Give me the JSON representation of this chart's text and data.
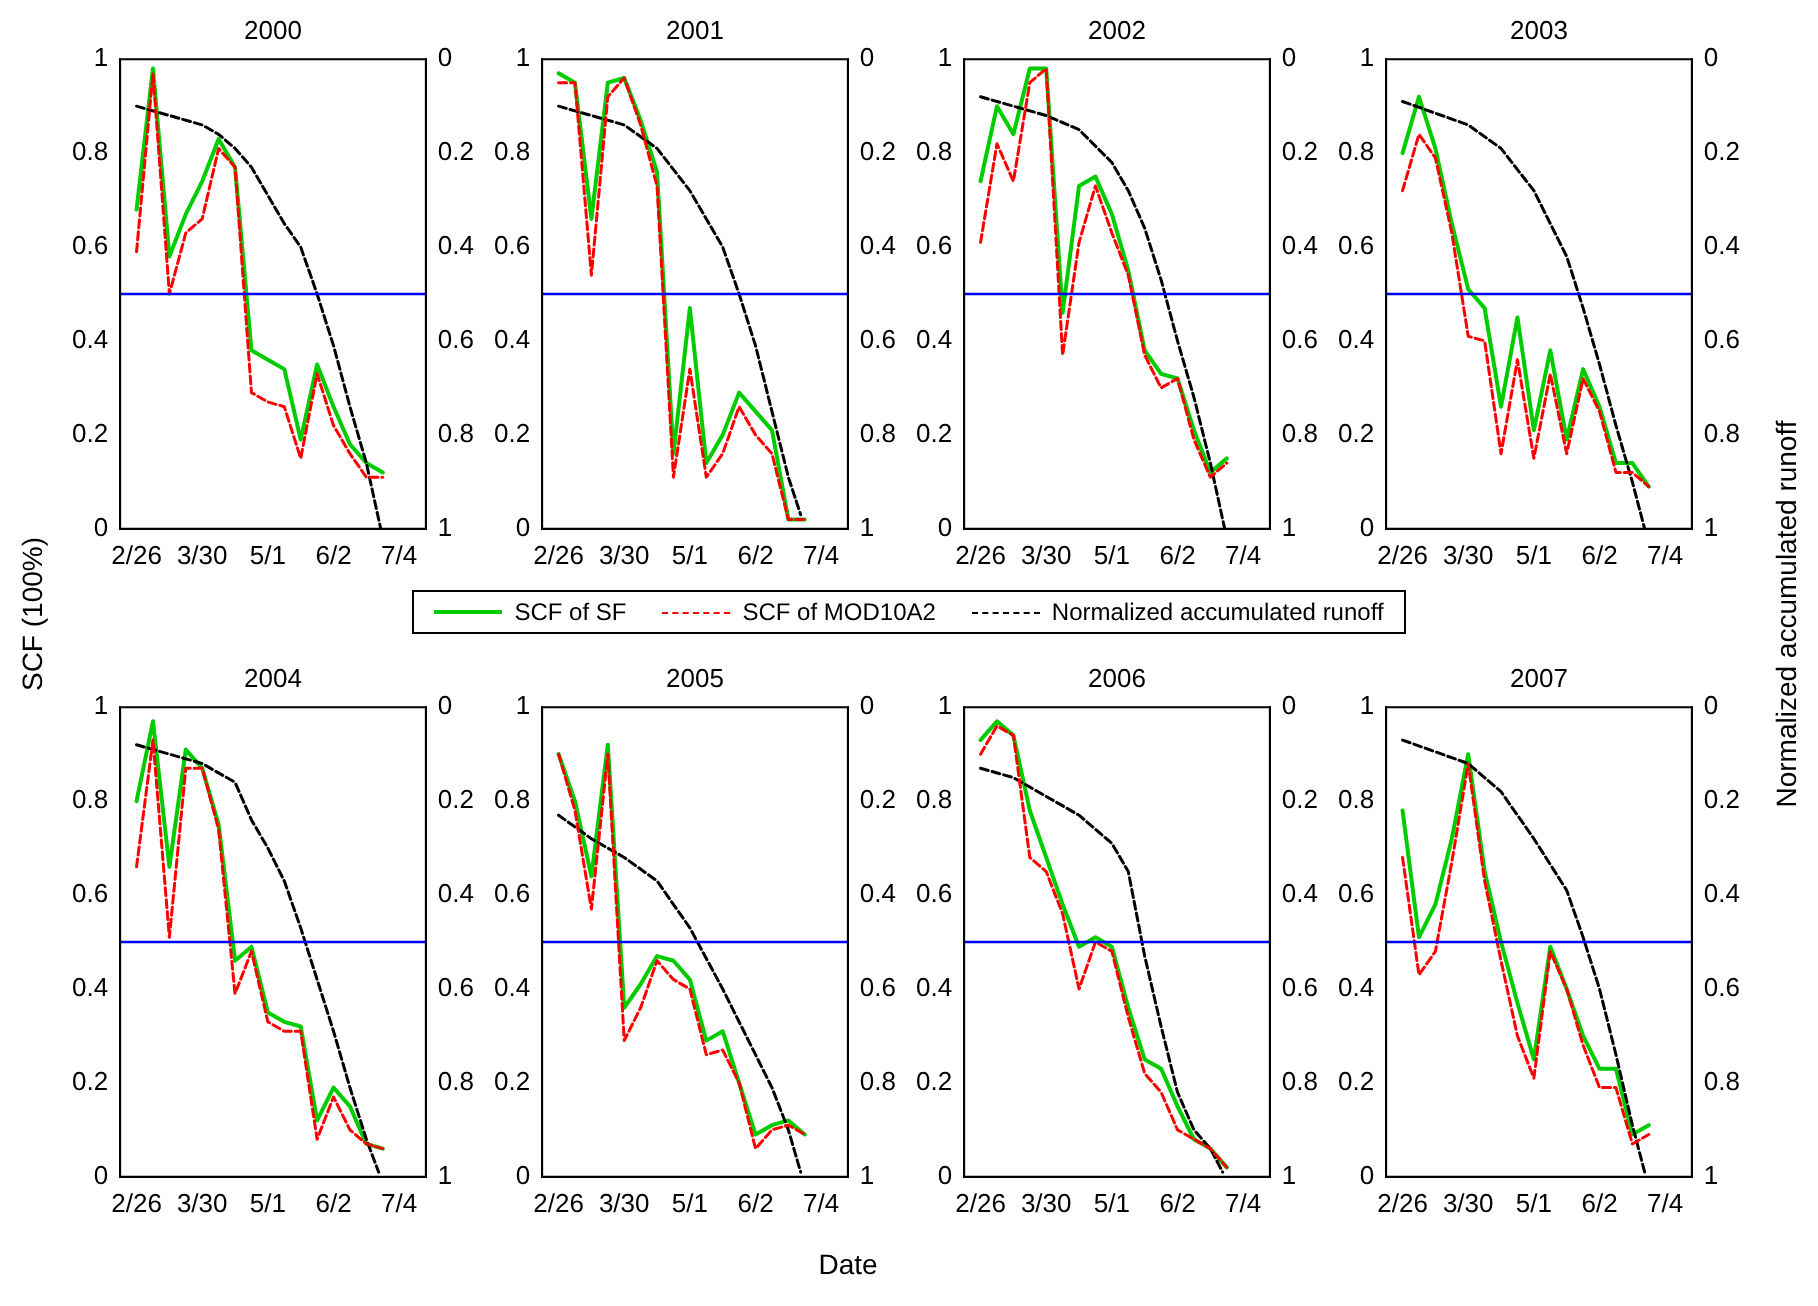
{
  "chart_data": [
    {
      "type": "line",
      "title": "2000",
      "ylabel": "SCF (100%)",
      "y2label": "Normalized accumulated runoff",
      "legend": "bottom",
      "marker": "none",
      "xlim": [
        "--02-18",
        "--07-17"
      ],
      "xticks": [
        {
          "value": "--02-26",
          "label": "2/26"
        },
        {
          "value": "--03-30",
          "label": "3/30"
        },
        {
          "value": "--05-01",
          "label": "5/1"
        },
        {
          "value": "--06-02",
          "label": "6/2"
        },
        {
          "value": "--07-04",
          "label": "7/4"
        }
      ],
      "ylim": [
        0,
        1
      ],
      "yticks": [
        0,
        0.2,
        0.4,
        0.6,
        0.8,
        1
      ],
      "y2lim": [
        1,
        0
      ],
      "y2ticks": [
        0,
        0.2,
        0.4,
        0.6,
        0.8,
        1
      ],
      "ref_lines": [
        {
          "axis": "y",
          "value": 0.5,
          "color": "#0000ff"
        }
      ],
      "x": [
        "--02-26",
        "--03-06",
        "--03-14",
        "--03-22",
        "--03-30",
        "--04-07",
        "--04-15",
        "--04-23",
        "--05-01",
        "--05-09",
        "--05-17",
        "--05-25",
        "--06-02",
        "--06-10",
        "--06-18",
        "--06-26"
      ],
      "series": [
        {
          "name": "SCF of SF",
          "color": "#00cc00",
          "line_style": "solid",
          "values": [
            0.68,
            0.98,
            0.58,
            0.67,
            0.74,
            0.83,
            0.77,
            0.38,
            0.36,
            0.34,
            0.19,
            0.35,
            0.26,
            0.18,
            0.14,
            0.12
          ]
        },
        {
          "name": "SCF of MOD10A2",
          "color": "#ff0000",
          "line_style": "dashed",
          "values": [
            0.59,
            0.97,
            0.5,
            0.63,
            0.66,
            0.81,
            0.77,
            0.29,
            0.27,
            0.26,
            0.15,
            0.33,
            0.22,
            0.16,
            0.11,
            0.11
          ]
        },
        {
          "name": "Normalized accumulated runoff",
          "color": "#000000",
          "line_style": "dashed",
          "axis": "y2",
          "x": [
            "--02-26",
            "--03-30",
            "--04-07",
            "--04-15",
            "--04-23",
            "--05-01",
            "--05-09",
            "--05-17",
            "--05-25",
            "--06-02",
            "--06-10",
            "--06-18",
            "--06-25"
          ],
          "values": [
            0.1,
            0.14,
            0.16,
            0.19,
            0.23,
            0.29,
            0.35,
            0.4,
            0.5,
            0.61,
            0.74,
            0.86,
            1
          ]
        }
      ]
    },
    {
      "type": "line",
      "title": "2001",
      "marker": "none",
      "xlim": [
        "--02-18",
        "--07-17"
      ],
      "xticks": [
        {
          "value": "--02-26",
          "label": "2/26"
        },
        {
          "value": "--03-30",
          "label": "3/30"
        },
        {
          "value": "--05-01",
          "label": "5/1"
        },
        {
          "value": "--06-02",
          "label": "6/2"
        },
        {
          "value": "--07-04",
          "label": "7/4"
        }
      ],
      "ylim": [
        0,
        1
      ],
      "yticks": [
        0,
        0.2,
        0.4,
        0.6,
        0.8,
        1
      ],
      "y2lim": [
        1,
        0
      ],
      "y2ticks": [
        0,
        0.2,
        0.4,
        0.6,
        0.8,
        1
      ],
      "ref_lines": [
        {
          "axis": "y",
          "value": 0.5,
          "color": "#0000ff"
        }
      ],
      "x": [
        "--02-26",
        "--03-06",
        "--03-14",
        "--03-22",
        "--03-30",
        "--04-07",
        "--04-15",
        "--04-23",
        "--05-01",
        "--05-09",
        "--05-17",
        "--05-25",
        "--06-02",
        "--06-10",
        "--06-18",
        "--06-26"
      ],
      "series": [
        {
          "color": "#00cc00",
          "line_style": "solid",
          "values": [
            0.97,
            0.95,
            0.66,
            0.95,
            0.96,
            0.87,
            0.76,
            0.16,
            0.47,
            0.14,
            0.2,
            0.29,
            0.25,
            0.21,
            0.02,
            0.02
          ]
        },
        {
          "color": "#ff0000",
          "line_style": "dashed",
          "values": [
            0.95,
            0.95,
            0.54,
            0.92,
            0.96,
            0.86,
            0.73,
            0.11,
            0.34,
            0.11,
            0.16,
            0.26,
            0.2,
            0.16,
            0.02,
            0.02
          ]
        },
        {
          "color": "#000000",
          "line_style": "dashed",
          "axis": "y2",
          "x": [
            "--02-26",
            "--03-30",
            "--04-15",
            "--05-01",
            "--05-17",
            "--05-25",
            "--06-02",
            "--06-10",
            "--06-18",
            "--06-24"
          ],
          "values": [
            0.1,
            0.14,
            0.19,
            0.28,
            0.4,
            0.5,
            0.61,
            0.75,
            0.89,
            0.97
          ]
        }
      ]
    },
    {
      "type": "line",
      "title": "2002",
      "marker": "none",
      "xlim": [
        "--02-18",
        "--07-17"
      ],
      "xticks": [
        {
          "value": "--02-26",
          "label": "2/26"
        },
        {
          "value": "--03-30",
          "label": "3/30"
        },
        {
          "value": "--05-01",
          "label": "5/1"
        },
        {
          "value": "--06-02",
          "label": "6/2"
        },
        {
          "value": "--07-04",
          "label": "7/4"
        }
      ],
      "ylim": [
        0,
        1
      ],
      "yticks": [
        0,
        0.2,
        0.4,
        0.6,
        0.8,
        1
      ],
      "y2lim": [
        1,
        0
      ],
      "y2ticks": [
        0,
        0.2,
        0.4,
        0.6,
        0.8,
        1
      ],
      "ref_lines": [
        {
          "axis": "y",
          "value": 0.5,
          "color": "#0000ff"
        }
      ],
      "x": [
        "--02-26",
        "--03-06",
        "--03-14",
        "--03-22",
        "--03-30",
        "--04-07",
        "--04-15",
        "--04-23",
        "--05-01",
        "--05-09",
        "--05-17",
        "--05-25",
        "--06-02",
        "--06-10",
        "--06-18",
        "--06-26"
      ],
      "series": [
        {
          "color": "#00cc00",
          "line_style": "solid",
          "values": [
            0.74,
            0.9,
            0.84,
            0.98,
            0.98,
            0.46,
            0.73,
            0.75,
            0.67,
            0.55,
            0.38,
            0.33,
            0.32,
            0.21,
            0.12,
            0.15
          ]
        },
        {
          "color": "#ff0000",
          "line_style": "dashed",
          "values": [
            0.61,
            0.82,
            0.74,
            0.95,
            0.98,
            0.37,
            0.61,
            0.73,
            0.63,
            0.54,
            0.37,
            0.3,
            0.32,
            0.19,
            0.11,
            0.14
          ]
        },
        {
          "color": "#000000",
          "line_style": "dashed",
          "axis": "y2",
          "x": [
            "--02-26",
            "--03-30",
            "--04-15",
            "--05-01",
            "--05-09",
            "--05-17",
            "--05-25",
            "--06-02",
            "--06-10",
            "--06-18",
            "--06-25"
          ],
          "values": [
            0.08,
            0.12,
            0.15,
            0.22,
            0.28,
            0.36,
            0.47,
            0.6,
            0.72,
            0.86,
            1
          ]
        }
      ]
    },
    {
      "type": "line",
      "title": "2003",
      "marker": "none",
      "xlim": [
        "--02-18",
        "--07-17"
      ],
      "xticks": [
        {
          "value": "--02-26",
          "label": "2/26"
        },
        {
          "value": "--03-30",
          "label": "3/30"
        },
        {
          "value": "--05-01",
          "label": "5/1"
        },
        {
          "value": "--06-02",
          "label": "6/2"
        },
        {
          "value": "--07-04",
          "label": "7/4"
        }
      ],
      "ylim": [
        0,
        1
      ],
      "yticks": [
        0,
        0.2,
        0.4,
        0.6,
        0.8,
        1
      ],
      "y2lim": [
        1,
        0
      ],
      "y2ticks": [
        0,
        0.2,
        0.4,
        0.6,
        0.8,
        1
      ],
      "ref_lines": [
        {
          "axis": "y",
          "value": 0.5,
          "color": "#0000ff"
        }
      ],
      "x": [
        "--02-26",
        "--03-06",
        "--03-14",
        "--03-22",
        "--03-30",
        "--04-07",
        "--04-15",
        "--04-23",
        "--05-01",
        "--05-09",
        "--05-17",
        "--05-25",
        "--06-02",
        "--06-10",
        "--06-18",
        "--06-26"
      ],
      "series": [
        {
          "color": "#00cc00",
          "line_style": "solid",
          "values": [
            0.8,
            0.92,
            0.81,
            0.65,
            0.51,
            0.47,
            0.26,
            0.45,
            0.21,
            0.38,
            0.19,
            0.34,
            0.26,
            0.14,
            0.14,
            0.09
          ]
        },
        {
          "color": "#ff0000",
          "line_style": "dashed",
          "values": [
            0.72,
            0.84,
            0.79,
            0.63,
            0.41,
            0.4,
            0.16,
            0.36,
            0.15,
            0.33,
            0.16,
            0.32,
            0.25,
            0.12,
            0.12,
            0.09
          ]
        },
        {
          "color": "#000000",
          "line_style": "dashed",
          "axis": "y2",
          "x": [
            "--02-26",
            "--03-30",
            "--04-15",
            "--05-01",
            "--05-17",
            "--05-25",
            "--06-02",
            "--06-10",
            "--06-18",
            "--06-24"
          ],
          "values": [
            0.09,
            0.14,
            0.19,
            0.28,
            0.42,
            0.53,
            0.65,
            0.78,
            0.9,
            1
          ]
        }
      ]
    },
    {
      "type": "line",
      "title": "2004",
      "marker": "none",
      "xlim": [
        "--02-18",
        "--07-17"
      ],
      "xticks": [
        {
          "value": "--02-26",
          "label": "2/26"
        },
        {
          "value": "--03-30",
          "label": "3/30"
        },
        {
          "value": "--05-01",
          "label": "5/1"
        },
        {
          "value": "--06-02",
          "label": "6/2"
        },
        {
          "value": "--07-04",
          "label": "7/4"
        }
      ],
      "ylim": [
        0,
        1
      ],
      "yticks": [
        0,
        0.2,
        0.4,
        0.6,
        0.8,
        1
      ],
      "y2lim": [
        1,
        0
      ],
      "y2ticks": [
        0,
        0.2,
        0.4,
        0.6,
        0.8,
        1
      ],
      "ref_lines": [
        {
          "axis": "y",
          "value": 0.5,
          "color": "#0000ff"
        }
      ],
      "x": [
        "--02-26",
        "--03-06",
        "--03-14",
        "--03-22",
        "--03-30",
        "--04-07",
        "--04-15",
        "--04-23",
        "--05-01",
        "--05-09",
        "--05-17",
        "--05-25",
        "--06-02",
        "--06-10",
        "--06-18",
        "--06-26"
      ],
      "series": [
        {
          "color": "#00cc00",
          "line_style": "solid",
          "values": [
            0.8,
            0.97,
            0.66,
            0.91,
            0.87,
            0.75,
            0.46,
            0.49,
            0.35,
            0.33,
            0.32,
            0.12,
            0.19,
            0.15,
            0.07,
            0.06
          ]
        },
        {
          "color": "#ff0000",
          "line_style": "dashed",
          "values": [
            0.66,
            0.93,
            0.51,
            0.87,
            0.87,
            0.74,
            0.39,
            0.48,
            0.33,
            0.31,
            0.31,
            0.08,
            0.17,
            0.1,
            0.07,
            0.06
          ]
        },
        {
          "color": "#000000",
          "line_style": "dashed",
          "axis": "y2",
          "x": [
            "--02-26",
            "--03-30",
            "--04-15",
            "--04-23",
            "--05-01",
            "--05-09",
            "--05-17",
            "--05-25",
            "--06-02",
            "--06-10",
            "--06-18",
            "--06-24"
          ],
          "values": [
            0.08,
            0.12,
            0.16,
            0.24,
            0.3,
            0.37,
            0.47,
            0.58,
            0.69,
            0.81,
            0.92,
            0.99
          ]
        }
      ]
    },
    {
      "type": "line",
      "title": "2005",
      "xlabel": "Date",
      "marker": "none",
      "xlim": [
        "--02-18",
        "--07-17"
      ],
      "xticks": [
        {
          "value": "--02-26",
          "label": "2/26"
        },
        {
          "value": "--03-30",
          "label": "3/30"
        },
        {
          "value": "--05-01",
          "label": "5/1"
        },
        {
          "value": "--06-02",
          "label": "6/2"
        },
        {
          "value": "--07-04",
          "label": "7/4"
        }
      ],
      "ylim": [
        0,
        1
      ],
      "yticks": [
        0,
        0.2,
        0.4,
        0.6,
        0.8,
        1
      ],
      "y2lim": [
        1,
        0
      ],
      "y2ticks": [
        0,
        0.2,
        0.4,
        0.6,
        0.8,
        1
      ],
      "ref_lines": [
        {
          "axis": "y",
          "value": 0.5,
          "color": "#0000ff"
        }
      ],
      "x": [
        "--02-26",
        "--03-06",
        "--03-14",
        "--03-22",
        "--03-30",
        "--04-07",
        "--04-15",
        "--04-23",
        "--05-01",
        "--05-09",
        "--05-17",
        "--05-25",
        "--06-02",
        "--06-10",
        "--06-18",
        "--06-26"
      ],
      "series": [
        {
          "color": "#00cc00",
          "line_style": "solid",
          "values": [
            0.9,
            0.8,
            0.64,
            0.92,
            0.36,
            0.41,
            0.47,
            0.46,
            0.42,
            0.29,
            0.31,
            0.2,
            0.09,
            0.11,
            0.12,
            0.09
          ]
        },
        {
          "color": "#ff0000",
          "line_style": "dashed",
          "values": [
            0.9,
            0.78,
            0.57,
            0.9,
            0.29,
            0.36,
            0.46,
            0.42,
            0.4,
            0.26,
            0.27,
            0.2,
            0.06,
            0.1,
            0.11,
            0.09
          ]
        },
        {
          "color": "#000000",
          "line_style": "dashed",
          "axis": "y2",
          "x": [
            "--02-26",
            "--03-14",
            "--03-30",
            "--04-15",
            "--05-01",
            "--05-17",
            "--06-02",
            "--06-10",
            "--06-18",
            "--06-24"
          ],
          "values": [
            0.23,
            0.28,
            0.32,
            0.37,
            0.47,
            0.6,
            0.74,
            0.81,
            0.9,
            0.99
          ]
        }
      ]
    },
    {
      "type": "line",
      "title": "2006",
      "marker": "none",
      "xlim": [
        "--02-18",
        "--07-17"
      ],
      "xticks": [
        {
          "value": "--02-26",
          "label": "2/26"
        },
        {
          "value": "--03-30",
          "label": "3/30"
        },
        {
          "value": "--05-01",
          "label": "5/1"
        },
        {
          "value": "--06-02",
          "label": "6/2"
        },
        {
          "value": "--07-04",
          "label": "7/4"
        }
      ],
      "ylim": [
        0,
        1
      ],
      "yticks": [
        0,
        0.2,
        0.4,
        0.6,
        0.8,
        1
      ],
      "y2lim": [
        1,
        0
      ],
      "y2ticks": [
        0,
        0.2,
        0.4,
        0.6,
        0.8,
        1
      ],
      "ref_lines": [
        {
          "axis": "y",
          "value": 0.5,
          "color": "#0000ff"
        }
      ],
      "x": [
        "--02-26",
        "--03-06",
        "--03-14",
        "--03-22",
        "--03-30",
        "--04-07",
        "--04-15",
        "--04-23",
        "--05-01",
        "--05-09",
        "--05-17",
        "--05-25",
        "--06-02",
        "--06-10",
        "--06-18",
        "--06-26"
      ],
      "series": [
        {
          "color": "#00cc00",
          "line_style": "solid",
          "values": [
            0.93,
            0.97,
            0.94,
            0.78,
            0.68,
            0.58,
            0.49,
            0.51,
            0.49,
            0.36,
            0.25,
            0.23,
            0.15,
            0.08,
            0.06,
            0.02
          ]
        },
        {
          "color": "#ff0000",
          "line_style": "dashed",
          "values": [
            0.9,
            0.96,
            0.94,
            0.68,
            0.65,
            0.56,
            0.4,
            0.5,
            0.48,
            0.34,
            0.22,
            0.18,
            0.1,
            0.08,
            0.06,
            0.02
          ]
        },
        {
          "color": "#000000",
          "line_style": "dashed",
          "axis": "y2",
          "x": [
            "--02-26",
            "--03-14",
            "--03-30",
            "--04-15",
            "--05-01",
            "--05-09",
            "--05-17",
            "--05-25",
            "--06-02",
            "--06-10",
            "--06-18",
            "--06-24"
          ],
          "values": [
            0.13,
            0.15,
            0.19,
            0.23,
            0.29,
            0.35,
            0.53,
            0.68,
            0.82,
            0.9,
            0.94,
            0.99
          ]
        }
      ]
    },
    {
      "type": "line",
      "title": "2007",
      "marker": "none",
      "xlim": [
        "--02-18",
        "--07-17"
      ],
      "xticks": [
        {
          "value": "--02-26",
          "label": "2/26"
        },
        {
          "value": "--03-30",
          "label": "3/30"
        },
        {
          "value": "--05-01",
          "label": "5/1"
        },
        {
          "value": "--06-02",
          "label": "6/2"
        },
        {
          "value": "--07-04",
          "label": "7/4"
        }
      ],
      "ylim": [
        0,
        1
      ],
      "yticks": [
        0,
        0.2,
        0.4,
        0.6,
        0.8,
        1
      ],
      "y2lim": [
        1,
        0
      ],
      "y2ticks": [
        0,
        0.2,
        0.4,
        0.6,
        0.8,
        1
      ],
      "ref_lines": [
        {
          "axis": "y",
          "value": 0.5,
          "color": "#0000ff"
        }
      ],
      "x": [
        "--02-26",
        "--03-06",
        "--03-14",
        "--03-22",
        "--03-30",
        "--04-07",
        "--04-15",
        "--04-23",
        "--05-01",
        "--05-09",
        "--05-17",
        "--05-25",
        "--06-02",
        "--06-10",
        "--06-18",
        "--06-26"
      ],
      "series": [
        {
          "color": "#00cc00",
          "line_style": "solid",
          "values": [
            0.78,
            0.51,
            0.58,
            0.72,
            0.9,
            0.65,
            0.5,
            0.37,
            0.25,
            0.49,
            0.4,
            0.3,
            0.23,
            0.23,
            0.09,
            0.11
          ]
        },
        {
          "color": "#ff0000",
          "line_style": "dashed",
          "values": [
            0.68,
            0.43,
            0.48,
            0.67,
            0.88,
            0.63,
            0.46,
            0.3,
            0.21,
            0.48,
            0.4,
            0.28,
            0.19,
            0.19,
            0.07,
            0.09
          ]
        },
        {
          "color": "#000000",
          "line_style": "dashed",
          "axis": "y2",
          "x": [
            "--02-26",
            "--03-30",
            "--04-15",
            "--05-01",
            "--05-17",
            "--05-25",
            "--06-02",
            "--06-10",
            "--06-18",
            "--06-24"
          ],
          "values": [
            0.07,
            0.12,
            0.18,
            0.28,
            0.39,
            0.49,
            0.6,
            0.74,
            0.89,
            0.99
          ]
        }
      ]
    }
  ]
}
